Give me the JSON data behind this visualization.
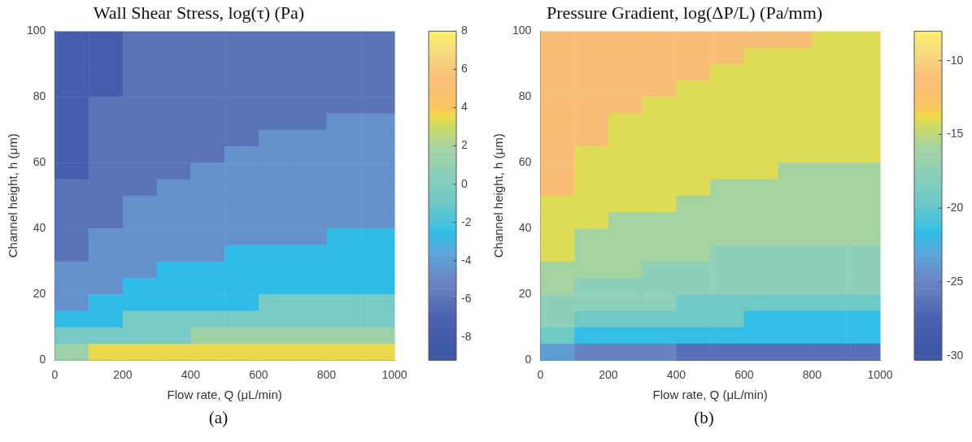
{
  "chart_data": [
    {
      "type": "heatmap",
      "title": "Wall Shear Stress, log(τ) (Pa)",
      "xlabel": "Flow rate, Q (μL/min)",
      "ylabel": "Channel height, h (μm)",
      "x": [
        50,
        150,
        250,
        350,
        450,
        550,
        650,
        750,
        850,
        950
      ],
      "y": [
        97.5,
        92.5,
        87.5,
        82.5,
        77.5,
        72.5,
        67.5,
        62.5,
        57.5,
        52.5,
        47.5,
        42.5,
        37.5,
        32.5,
        27.5,
        22.5,
        17.5,
        12.5,
        7.5,
        2.5
      ],
      "cells": [
        [
          -7.5,
          -7.5,
          -6,
          -6,
          -6,
          -6,
          -6,
          -6,
          -6,
          -6
        ],
        [
          -7.5,
          -7.5,
          -6,
          -6,
          -6,
          -6,
          -6,
          -6,
          -6,
          -6
        ],
        [
          -7.5,
          -7.5,
          -6,
          -6,
          -6,
          -6,
          -6,
          -6,
          -6,
          -6
        ],
        [
          -7.5,
          -7.5,
          -6,
          -6,
          -6,
          -6,
          -6,
          -6,
          -6,
          -6
        ],
        [
          -7.5,
          -6,
          -6,
          -6,
          -6,
          -6,
          -6,
          -6,
          -6,
          -6
        ],
        [
          -7.5,
          -6,
          -6,
          -6,
          -6,
          -6,
          -6,
          -6,
          -4.5,
          -4.5
        ],
        [
          -7.5,
          -6,
          -6,
          -6,
          -6,
          -6,
          -4.5,
          -4.5,
          -4.5,
          -4.5
        ],
        [
          -7.5,
          -6,
          -6,
          -6,
          -6,
          -4.5,
          -4.5,
          -4.5,
          -4.5,
          -4.5
        ],
        [
          -7.5,
          -6,
          -6,
          -6,
          -4.5,
          -4.5,
          -4.5,
          -4.5,
          -4.5,
          -4.5
        ],
        [
          -6,
          -6,
          -6,
          -4.5,
          -4.5,
          -4.5,
          -4.5,
          -4.5,
          -4.5,
          -4.5
        ],
        [
          -6,
          -6,
          -4.5,
          -4.5,
          -4.5,
          -4.5,
          -4.5,
          -4.5,
          -4.5,
          -4.5
        ],
        [
          -6,
          -6,
          -4.5,
          -4.5,
          -4.5,
          -4.5,
          -4.5,
          -4.5,
          -4.5,
          -4.5
        ],
        [
          -6,
          -4.5,
          -4.5,
          -4.5,
          -4.5,
          -4.5,
          -4.5,
          -4.5,
          -2.5,
          -2.5
        ],
        [
          -6,
          -4.5,
          -4.5,
          -4.5,
          -4.5,
          -2.5,
          -2.5,
          -2.5,
          -2.5,
          -2.5
        ],
        [
          -4.5,
          -4.5,
          -4.5,
          -2.5,
          -2.5,
          -2.5,
          -2.5,
          -2.5,
          -2.5,
          -2.5
        ],
        [
          -4.5,
          -4.5,
          -2.5,
          -2.5,
          -2.5,
          -2.5,
          -2.5,
          -2.5,
          -2.5,
          -2.5
        ],
        [
          -4.5,
          -2.5,
          -2.5,
          -2.5,
          -2.5,
          -2.5,
          -0.5,
          -0.5,
          -0.5,
          -0.5
        ],
        [
          -2.5,
          -2.5,
          -0.5,
          -0.5,
          -0.5,
          -0.5,
          -0.5,
          -0.5,
          -0.5,
          -0.5
        ],
        [
          -0.5,
          -0.5,
          -0.5,
          -0.5,
          1.5,
          1.5,
          1.5,
          1.5,
          1.5,
          1.5
        ],
        [
          1.5,
          3.5,
          3.5,
          3.5,
          3.5,
          3.5,
          3.5,
          3.5,
          3.5,
          3.5
        ]
      ],
      "xlim": [
        0,
        1000
      ],
      "xticks": [
        0,
        200,
        400,
        600,
        800,
        1000
      ],
      "ylim": [
        0,
        100
      ],
      "yticks": [
        0,
        20,
        40,
        60,
        80,
        100
      ],
      "clim": [
        -9.2,
        8
      ],
      "cticks": [
        -8,
        -6,
        -4,
        -2,
        0,
        2,
        4,
        6,
        8
      ],
      "annotations": [
        "(a)"
      ]
    },
    {
      "type": "heatmap",
      "title": "Pressure Gradient, log(ΔP/L) (Pa/mm)",
      "xlabel": "Flow rate, Q (μL/min)",
      "ylabel": "Channel height, h (μm)",
      "x": [
        50,
        150,
        250,
        350,
        450,
        550,
        650,
        750,
        850,
        950
      ],
      "y": [
        97.5,
        92.5,
        87.5,
        82.5,
        77.5,
        72.5,
        67.5,
        62.5,
        57.5,
        52.5,
        47.5,
        42.5,
        37.5,
        32.5,
        27.5,
        22.5,
        17.5,
        12.5,
        7.5,
        2.5
      ],
      "cells": [
        [
          -11.5,
          -11.5,
          -11.5,
          -11.5,
          -11.5,
          -11.5,
          -11.5,
          -11.5,
          -14,
          -14
        ],
        [
          -11.5,
          -11.5,
          -11.5,
          -11.5,
          -11.5,
          -11.5,
          -14,
          -14,
          -14,
          -14
        ],
        [
          -11.5,
          -11.5,
          -11.5,
          -11.5,
          -11.5,
          -14,
          -14,
          -14,
          -14,
          -14
        ],
        [
          -11.5,
          -11.5,
          -11.5,
          -11.5,
          -14,
          -14,
          -14,
          -14,
          -14,
          -14
        ],
        [
          -11.5,
          -11.5,
          -11.5,
          -14,
          -14,
          -14,
          -14,
          -14,
          -14,
          -14
        ],
        [
          -11.5,
          -11.5,
          -14,
          -14,
          -14,
          -14,
          -14,
          -14,
          -14,
          -14
        ],
        [
          -11.5,
          -11.5,
          -14,
          -14,
          -14,
          -14,
          -14,
          -14,
          -14,
          -14
        ],
        [
          -11.5,
          -14,
          -14,
          -14,
          -14,
          -14,
          -14,
          -14,
          -14,
          -14
        ],
        [
          -11.5,
          -14,
          -14,
          -14,
          -14,
          -14,
          -14,
          -16,
          -16,
          -16
        ],
        [
          -11.5,
          -14,
          -14,
          -14,
          -14,
          -16,
          -16,
          -16,
          -16,
          -16
        ],
        [
          -14,
          -14,
          -14,
          -14,
          -16,
          -16,
          -16,
          -16,
          -16,
          -16
        ],
        [
          -14,
          -14,
          -16,
          -16,
          -16,
          -16,
          -16,
          -16,
          -16,
          -16
        ],
        [
          -14,
          -16,
          -16,
          -16,
          -16,
          -16,
          -16,
          -16,
          -16,
          -16
        ],
        [
          -14,
          -16,
          -16,
          -16,
          -16,
          -17.5,
          -17.5,
          -17.5,
          -17.5,
          -17.5
        ],
        [
          -16,
          -16,
          -16,
          -17.5,
          -17.5,
          -17.5,
          -17.5,
          -17.5,
          -17.5,
          -17.5
        ],
        [
          -16,
          -17.5,
          -17.5,
          -17.5,
          -17.5,
          -17.5,
          -17.5,
          -17.5,
          -17.5,
          -17.5
        ],
        [
          -17.5,
          -17.5,
          -17.5,
          -17.5,
          -19.5,
          -19.5,
          -19.5,
          -19.5,
          -19.5,
          -19.5
        ],
        [
          -17.5,
          -19.5,
          -19.5,
          -19.5,
          -19.5,
          -19.5,
          -21.5,
          -21.5,
          -21.5,
          -21.5
        ],
        [
          -19.5,
          -21.5,
          -21.5,
          -21.5,
          -21.5,
          -21.5,
          -21.5,
          -21.5,
          -21.5,
          -21.5
        ],
        [
          -23.5,
          -25,
          -25,
          -25,
          -26.5,
          -26.5,
          -26.5,
          -26.5,
          -26.5,
          -26.5
        ]
      ],
      "xlim": [
        0,
        1000
      ],
      "xticks": [
        0,
        200,
        400,
        600,
        800,
        1000
      ],
      "ylim": [
        0,
        100
      ],
      "yticks": [
        0,
        20,
        40,
        60,
        80,
        100
      ],
      "clim": [
        -30.3,
        -8
      ],
      "cticks": [
        -30,
        -25,
        -20,
        -15,
        -10
      ],
      "annotations": [
        "(b)"
      ]
    }
  ]
}
